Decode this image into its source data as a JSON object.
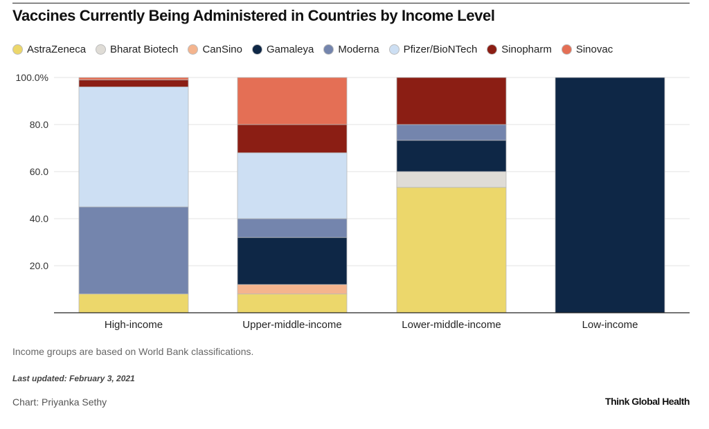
{
  "header": {
    "title": "Vaccines Currently Being Administered in Countries by Income Level"
  },
  "footer": {
    "note": "Income groups are based on World Bank classifications.",
    "updated": "Last updated: February 3, 2021",
    "credit": "Chart: Priyanka Sethy",
    "brand": "Think Global Health"
  },
  "chart_data": {
    "type": "bar",
    "stacked": true,
    "title": "Vaccines Currently Being Administered in Countries by Income Level",
    "xlabel": "",
    "ylabel": "",
    "ylim": [
      0,
      100
    ],
    "yticks": [
      20,
      40,
      60,
      80,
      100
    ],
    "ytick_labels": [
      "20.0",
      "40.0",
      "60.0",
      "80.0",
      "100.0%"
    ],
    "grid": true,
    "legend_position": "top",
    "categories": [
      "High-income",
      "Upper-middle-income",
      "Lower-middle-income",
      "Low-income"
    ],
    "series": [
      {
        "name": "AstraZeneca",
        "color": "#ecd76b",
        "values": [
          8,
          8,
          53.3,
          0
        ]
      },
      {
        "name": "Bharat Biotech",
        "color": "#dfdcd6",
        "values": [
          0,
          0,
          6.7,
          0
        ]
      },
      {
        "name": "CanSino",
        "color": "#f4b48e",
        "values": [
          0,
          4,
          0,
          0
        ]
      },
      {
        "name": "Gamaleya",
        "color": "#0e2746",
        "values": [
          0,
          20,
          13.3,
          100
        ]
      },
      {
        "name": "Moderna",
        "color": "#7485ad",
        "values": [
          37,
          8,
          6.7,
          0
        ]
      },
      {
        "name": "Pfizer/BioNTech",
        "color": "#cddff3",
        "values": [
          51,
          28,
          0,
          0
        ]
      },
      {
        "name": "Sinopharm",
        "color": "#8b1e14",
        "values": [
          3,
          12,
          20,
          0
        ]
      },
      {
        "name": "Sinovac",
        "color": "#e46f55",
        "values": [
          1,
          20,
          0,
          0
        ]
      }
    ]
  }
}
